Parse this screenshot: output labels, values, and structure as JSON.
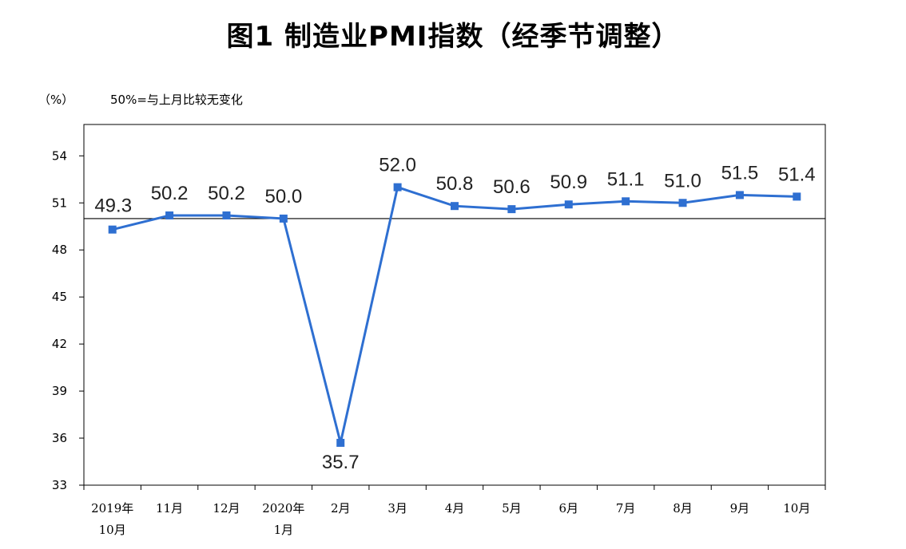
{
  "title": "图1 制造业PMI指数（经季节调整）",
  "unit_label": "（%）",
  "baseline_note": "50%=与上月比较无变化",
  "colors": {
    "line": "#2e6fd1",
    "axis": "#000000",
    "baseline": "#000000"
  },
  "chart_data": {
    "type": "line",
    "title": "图1 制造业PMI指数（经季节调整）",
    "ylabel": "（%）",
    "xlabel": "",
    "categories": [
      [
        "2019年",
        "10月"
      ],
      [
        "11月"
      ],
      [
        "12月"
      ],
      [
        "2020年",
        "1月"
      ],
      [
        "2月"
      ],
      [
        "3月"
      ],
      [
        "4月"
      ],
      [
        "5月"
      ],
      [
        "6月"
      ],
      [
        "7月"
      ],
      [
        "8月"
      ],
      [
        "9月"
      ],
      [
        "10月"
      ]
    ],
    "values": [
      49.3,
      50.2,
      50.2,
      50.0,
      35.7,
      52.0,
      50.8,
      50.6,
      50.9,
      51.1,
      51.0,
      51.5,
      51.4
    ],
    "data_labels": [
      "49.3",
      "50.2",
      "50.2",
      "50.0",
      "35.7",
      "52.0",
      "50.8",
      "50.6",
      "50.9",
      "51.1",
      "51.0",
      "51.5",
      "51.4"
    ],
    "ylim": [
      33,
      56
    ],
    "yticks": [
      33,
      36,
      39,
      42,
      45,
      48,
      51,
      54
    ],
    "reference_line": 50,
    "grid": false,
    "legend": "none",
    "marker": "square"
  }
}
